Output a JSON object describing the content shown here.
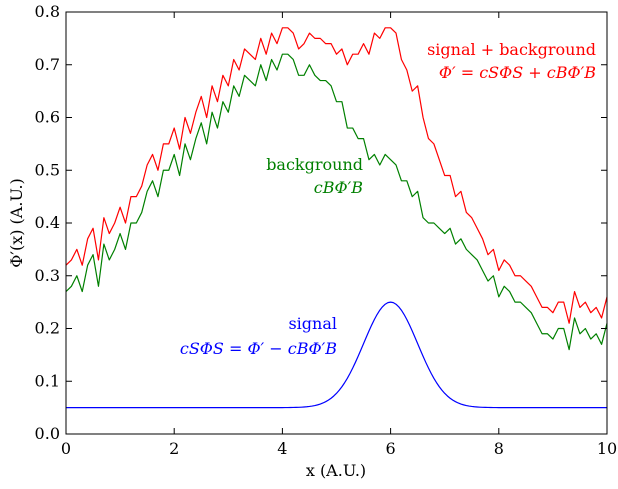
{
  "chart_data": {
    "type": "line",
    "xlabel": "x (A.U.)",
    "ylabel": "Φ′(x) (A.U.)",
    "xlim": [
      0,
      10
    ],
    "ylim": [
      0,
      0.8
    ],
    "xticks": [
      "0",
      "2",
      "4",
      "6",
      "8",
      "10"
    ],
    "yticks": [
      "0.0",
      "0.1",
      "0.2",
      "0.3",
      "0.4",
      "0.5",
      "0.6",
      "0.7",
      "0.8"
    ],
    "grid": false,
    "series": [
      {
        "key": "signal_background",
        "color": "#ff0000",
        "annotation": [
          "signal + background",
          "Φ′ = cSΦS + cBΦ′B"
        ],
        "x": [
          0.0,
          0.1,
          0.2,
          0.3,
          0.4,
          0.5,
          0.6,
          0.7,
          0.8,
          0.9,
          1.0,
          1.1,
          1.2,
          1.3,
          1.4,
          1.5,
          1.6,
          1.7,
          1.8,
          1.9,
          2.0,
          2.1,
          2.2,
          2.3,
          2.4,
          2.5,
          2.6,
          2.7,
          2.8,
          2.9,
          3.0,
          3.1,
          3.2,
          3.3,
          3.4,
          3.5,
          3.6,
          3.7,
          3.8,
          3.9,
          4.0,
          4.1,
          4.2,
          4.3,
          4.4,
          4.5,
          4.6,
          4.7,
          4.8,
          4.9,
          5.0,
          5.1,
          5.2,
          5.3,
          5.4,
          5.5,
          5.6,
          5.7,
          5.8,
          5.9,
          6.0,
          6.1,
          6.2,
          6.3,
          6.4,
          6.5,
          6.6,
          6.7,
          6.8,
          6.9,
          7.0,
          7.1,
          7.2,
          7.3,
          7.4,
          7.5,
          7.6,
          7.7,
          7.8,
          7.9,
          8.0,
          8.1,
          8.2,
          8.3,
          8.4,
          8.5,
          8.6,
          8.7,
          8.8,
          8.9,
          9.0,
          9.1,
          9.2,
          9.3,
          9.4,
          9.5,
          9.6,
          9.7,
          9.8,
          9.9,
          10.0
        ],
        "y": [
          0.32,
          0.33,
          0.35,
          0.32,
          0.37,
          0.39,
          0.33,
          0.41,
          0.38,
          0.4,
          0.43,
          0.4,
          0.45,
          0.45,
          0.47,
          0.51,
          0.53,
          0.5,
          0.55,
          0.55,
          0.58,
          0.54,
          0.6,
          0.57,
          0.61,
          0.64,
          0.6,
          0.66,
          0.63,
          0.68,
          0.66,
          0.71,
          0.69,
          0.73,
          0.72,
          0.71,
          0.75,
          0.72,
          0.76,
          0.74,
          0.77,
          0.77,
          0.76,
          0.73,
          0.74,
          0.76,
          0.75,
          0.75,
          0.74,
          0.74,
          0.72,
          0.73,
          0.7,
          0.72,
          0.72,
          0.74,
          0.72,
          0.76,
          0.75,
          0.77,
          0.77,
          0.76,
          0.71,
          0.69,
          0.65,
          0.66,
          0.6,
          0.56,
          0.55,
          0.52,
          0.49,
          0.49,
          0.45,
          0.46,
          0.42,
          0.41,
          0.39,
          0.37,
          0.34,
          0.35,
          0.31,
          0.33,
          0.32,
          0.3,
          0.3,
          0.29,
          0.28,
          0.26,
          0.24,
          0.24,
          0.23,
          0.25,
          0.25,
          0.21,
          0.27,
          0.24,
          0.25,
          0.23,
          0.24,
          0.22,
          0.26
        ]
      },
      {
        "key": "background",
        "color": "#008000",
        "annotation": [
          "background",
          "cBΦ′B"
        ],
        "x": [
          0.0,
          0.1,
          0.2,
          0.3,
          0.4,
          0.5,
          0.6,
          0.7,
          0.8,
          0.9,
          1.0,
          1.1,
          1.2,
          1.3,
          1.4,
          1.5,
          1.6,
          1.7,
          1.8,
          1.9,
          2.0,
          2.1,
          2.2,
          2.3,
          2.4,
          2.5,
          2.6,
          2.7,
          2.8,
          2.9,
          3.0,
          3.1,
          3.2,
          3.3,
          3.4,
          3.5,
          3.6,
          3.7,
          3.8,
          3.9,
          4.0,
          4.1,
          4.2,
          4.3,
          4.4,
          4.5,
          4.6,
          4.7,
          4.8,
          4.9,
          5.0,
          5.1,
          5.2,
          5.3,
          5.4,
          5.5,
          5.6,
          5.7,
          5.8,
          5.9,
          6.0,
          6.1,
          6.2,
          6.3,
          6.4,
          6.5,
          6.6,
          6.7,
          6.8,
          6.9,
          7.0,
          7.1,
          7.2,
          7.3,
          7.4,
          7.5,
          7.6,
          7.7,
          7.8,
          7.9,
          8.0,
          8.1,
          8.2,
          8.3,
          8.4,
          8.5,
          8.6,
          8.7,
          8.8,
          8.9,
          9.0,
          9.1,
          9.2,
          9.3,
          9.4,
          9.5,
          9.6,
          9.7,
          9.8,
          9.9,
          10.0
        ],
        "y": [
          0.27,
          0.28,
          0.3,
          0.27,
          0.32,
          0.34,
          0.28,
          0.36,
          0.33,
          0.35,
          0.38,
          0.35,
          0.4,
          0.4,
          0.42,
          0.46,
          0.48,
          0.45,
          0.5,
          0.5,
          0.53,
          0.49,
          0.55,
          0.52,
          0.56,
          0.59,
          0.55,
          0.61,
          0.58,
          0.63,
          0.61,
          0.66,
          0.64,
          0.68,
          0.67,
          0.66,
          0.7,
          0.67,
          0.71,
          0.69,
          0.72,
          0.72,
          0.71,
          0.68,
          0.68,
          0.7,
          0.68,
          0.67,
          0.67,
          0.66,
          0.63,
          0.63,
          0.58,
          0.58,
          0.56,
          0.56,
          0.52,
          0.53,
          0.51,
          0.53,
          0.52,
          0.51,
          0.48,
          0.48,
          0.45,
          0.46,
          0.41,
          0.4,
          0.4,
          0.39,
          0.38,
          0.39,
          0.36,
          0.37,
          0.35,
          0.34,
          0.33,
          0.31,
          0.29,
          0.3,
          0.26,
          0.28,
          0.27,
          0.25,
          0.25,
          0.24,
          0.23,
          0.21,
          0.19,
          0.19,
          0.18,
          0.2,
          0.2,
          0.16,
          0.22,
          0.19,
          0.2,
          0.18,
          0.19,
          0.17,
          0.21
        ]
      },
      {
        "key": "signal",
        "color": "#0000ff",
        "annotation": [
          "signal",
          "cSΦS = Φ′ − cBΦ′B"
        ],
        "gaussian": {
          "baseline": 0.05,
          "amplitude": 0.2,
          "center": 6.0,
          "sigma": 0.5,
          "step": 0.05
        }
      }
    ]
  }
}
